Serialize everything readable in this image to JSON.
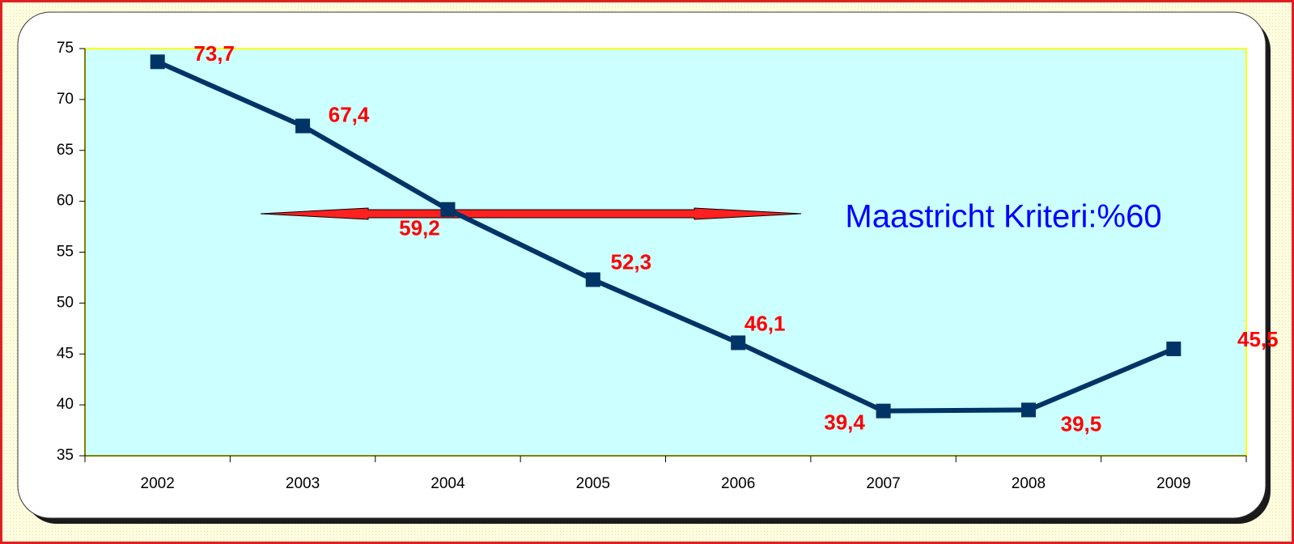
{
  "chart_data": {
    "type": "line",
    "categories": [
      "2002",
      "2003",
      "2004",
      "2005",
      "2006",
      "2007",
      "2008",
      "2009"
    ],
    "series": [
      {
        "color": "#003366",
        "values": [
          73.7,
          67.4,
          59.2,
          52.3,
          46.1,
          39.4,
          39.5,
          45.5
        ],
        "value_labels": [
          "73,7",
          "67,4",
          "59,2",
          "52,3",
          "46,1",
          "39,4",
          "39,5",
          "45,5"
        ]
      }
    ],
    "ylim": [
      35,
      75
    ],
    "yticks": [
      35,
      40,
      45,
      50,
      55,
      60,
      65,
      70,
      75
    ],
    "annotation": "Maastricht Kriteri:%60"
  }
}
